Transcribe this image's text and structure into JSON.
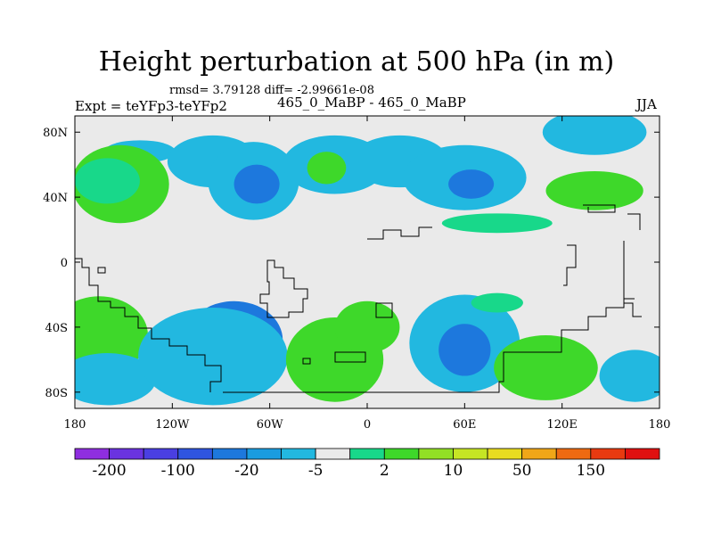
{
  "header": {
    "title": "Height perturbation at 500 hPa (in m)",
    "stats": "rmsd= 3.79128 diff= -2.99661e-08",
    "expt": "Expt = teYFp3-teYFp2",
    "center_label": "465_0_MaBP - 465_0_MaBP",
    "season": "JJA"
  },
  "chart_data": {
    "type": "heatmap",
    "title": "Height perturbation at 500 hPa (in m)",
    "xlabel": "",
    "ylabel": "",
    "x_range": [
      -180,
      180
    ],
    "y_range": [
      -90,
      90
    ],
    "x_ticks": [
      {
        "value": -180,
        "label": "180"
      },
      {
        "value": -120,
        "label": "120W"
      },
      {
        "value": -60,
        "label": "60W"
      },
      {
        "value": 0,
        "label": "0"
      },
      {
        "value": 60,
        "label": "60E"
      },
      {
        "value": 120,
        "label": "120E"
      },
      {
        "value": 180,
        "label": "180"
      }
    ],
    "y_ticks": [
      {
        "value": 80,
        "label": "80N"
      },
      {
        "value": 40,
        "label": "40N"
      },
      {
        "value": 0,
        "label": "0"
      },
      {
        "value": -40,
        "label": "40S"
      },
      {
        "value": -80,
        "label": "80S"
      }
    ],
    "colorbar": {
      "colors": [
        "#8f2ee0",
        "#6a33e0",
        "#4a3fe2",
        "#2f55e0",
        "#1d78dd",
        "#1a9ce0",
        "#22b8e0",
        "#eaeaea",
        "#18d88a",
        "#3ed82a",
        "#92e025",
        "#c6e524",
        "#e8dc20",
        "#f0a618",
        "#ee6a12",
        "#e83a10",
        "#e01010"
      ],
      "labels": [
        {
          "after_bin": 1,
          "text": "-200"
        },
        {
          "after_bin": 3,
          "text": "-100"
        },
        {
          "after_bin": 5,
          "text": "-20"
        },
        {
          "after_bin": 7,
          "text": "-5"
        },
        {
          "after_bin": 9,
          "text": "2"
        },
        {
          "after_bin": 11,
          "text": "10"
        },
        {
          "after_bin": 13,
          "text": "50"
        },
        {
          "after_bin": 15,
          "text": "150"
        }
      ]
    },
    "background_color": "#eaeaea",
    "regions": [
      {
        "name": "np-band-nw",
        "color": "#22b8e0",
        "lon": -140,
        "lat": 68,
        "rlon": 22,
        "rlat": 7
      },
      {
        "name": "np-band-nc",
        "color": "#22b8e0",
        "lon": -95,
        "lat": 62,
        "rlon": 28,
        "rlat": 16
      },
      {
        "name": "np-band-2",
        "color": "#22b8e0",
        "lon": -70,
        "lat": 50,
        "rlon": 28,
        "rlat": 24
      },
      {
        "name": "np-blue-core",
        "color": "#1d78dd",
        "lon": -68,
        "lat": 48,
        "rlon": 14,
        "rlat": 12
      },
      {
        "name": "np-green-w",
        "color": "#3ed82a",
        "lon": -152,
        "lat": 48,
        "rlon": 30,
        "rlat": 24
      },
      {
        "name": "np-ltgreen-w",
        "color": "#18d88a",
        "lon": -160,
        "lat": 50,
        "rlon": 20,
        "rlat": 14
      },
      {
        "name": "np-cyan-a",
        "color": "#22b8e0",
        "lon": -20,
        "lat": 60,
        "rlon": 32,
        "rlat": 18
      },
      {
        "name": "np-cyan-b",
        "color": "#22b8e0",
        "lon": 20,
        "lat": 62,
        "rlon": 30,
        "rlat": 16
      },
      {
        "name": "np-green-c",
        "color": "#3ed82a",
        "lon": -25,
        "lat": 58,
        "rlon": 12,
        "rlat": 10
      },
      {
        "name": "np-cyan-c",
        "color": "#22b8e0",
        "lon": 60,
        "lat": 52,
        "rlon": 38,
        "rlat": 20
      },
      {
        "name": "np-blue-e",
        "color": "#1d78dd",
        "lon": 64,
        "lat": 48,
        "rlon": 14,
        "rlat": 9
      },
      {
        "name": "np-green-ne",
        "color": "#3ed82a",
        "lon": 140,
        "lat": 44,
        "rlon": 30,
        "rlat": 12
      },
      {
        "name": "np-cyan-ne",
        "color": "#22b8e0",
        "lon": 140,
        "lat": 80,
        "rlon": 32,
        "rlat": 14
      },
      {
        "name": "np-green-band",
        "color": "#18d88a",
        "lon": 80,
        "lat": 24,
        "rlon": 34,
        "rlat": 6
      },
      {
        "name": "sh-green-w",
        "color": "#3ed82a",
        "lon": -165,
        "lat": -45,
        "rlon": 30,
        "rlat": 24
      },
      {
        "name": "sh-cyan-w",
        "color": "#22b8e0",
        "lon": -160,
        "lat": -72,
        "rlon": 30,
        "rlat": 16
      },
      {
        "name": "sh-blue-w",
        "color": "#1d78dd",
        "lon": -82,
        "lat": -48,
        "rlon": 30,
        "rlat": 24
      },
      {
        "name": "sh-cyan-blue-w",
        "color": "#22b8e0",
        "lon": -95,
        "lat": -58,
        "rlon": 46,
        "rlat": 30
      },
      {
        "name": "sh-green-c",
        "color": "#3ed82a",
        "lon": -20,
        "lat": -60,
        "rlon": 30,
        "rlat": 26
      },
      {
        "name": "sh-green-c2",
        "color": "#3ed82a",
        "lon": 0,
        "lat": -40,
        "rlon": 20,
        "rlat": 16
      },
      {
        "name": "sh-cyan-e",
        "color": "#22b8e0",
        "lon": 60,
        "lat": -50,
        "rlon": 34,
        "rlat": 30
      },
      {
        "name": "sh-blue-e",
        "color": "#1d78dd",
        "lon": 60,
        "lat": -54,
        "rlon": 16,
        "rlat": 16
      },
      {
        "name": "sh-yellow-e",
        "color": "#92e025",
        "lon": 110,
        "lat": -65,
        "rlon": 24,
        "rlat": 14
      },
      {
        "name": "sh-green-e",
        "color": "#3ed82a",
        "lon": 110,
        "lat": -65,
        "rlon": 32,
        "rlat": 20
      },
      {
        "name": "sh-cyan-far-e",
        "color": "#22b8e0",
        "lon": 165,
        "lat": -70,
        "rlon": 22,
        "rlat": 16
      },
      {
        "name": "sh-green-small",
        "color": "#18d88a",
        "lon": 80,
        "lat": -25,
        "rlon": 16,
        "rlat": 6
      }
    ]
  }
}
